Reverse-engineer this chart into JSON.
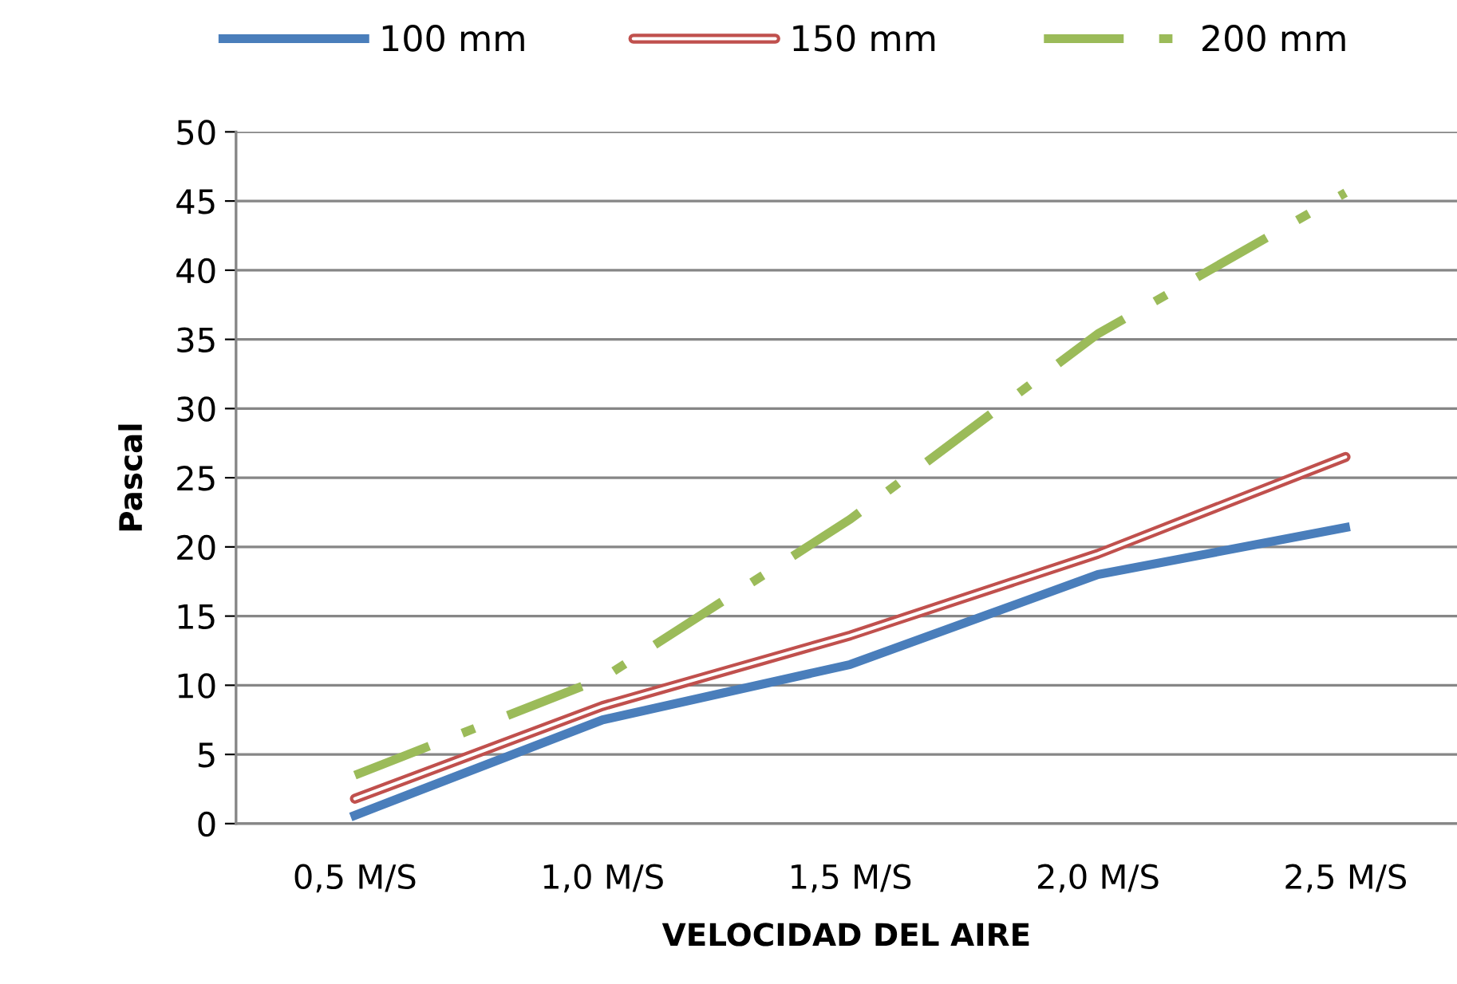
{
  "chart_data": {
    "type": "line",
    "xlabel": "VELOCIDAD DEL AIRE",
    "ylabel": "Pascal",
    "categories": [
      "0,5 M/S",
      "1,0 M/S",
      "1,5 M/S",
      "2,0 M/S",
      "2,5 M/S"
    ],
    "series": [
      {
        "name": "100 mm",
        "color": "#4a7ebb",
        "line_style": "solid",
        "values": [
          0.6,
          7.5,
          11.5,
          18.0,
          21.4
        ]
      },
      {
        "name": "150 mm",
        "color": "#c0504d",
        "line_style": "solid",
        "values": [
          1.8,
          8.5,
          13.6,
          19.5,
          26.5
        ]
      },
      {
        "name": "200 mm",
        "color": "#9bbb59",
        "line_style": "dashed",
        "values": [
          3.5,
          10.5,
          22.0,
          35.4,
          45.6
        ]
      }
    ],
    "ylim": [
      0,
      50
    ],
    "yticks": [
      0,
      5,
      10,
      15,
      20,
      25,
      30,
      35,
      40,
      45,
      50
    ],
    "grid": "y",
    "legend": "top",
    "marker": "none"
  }
}
